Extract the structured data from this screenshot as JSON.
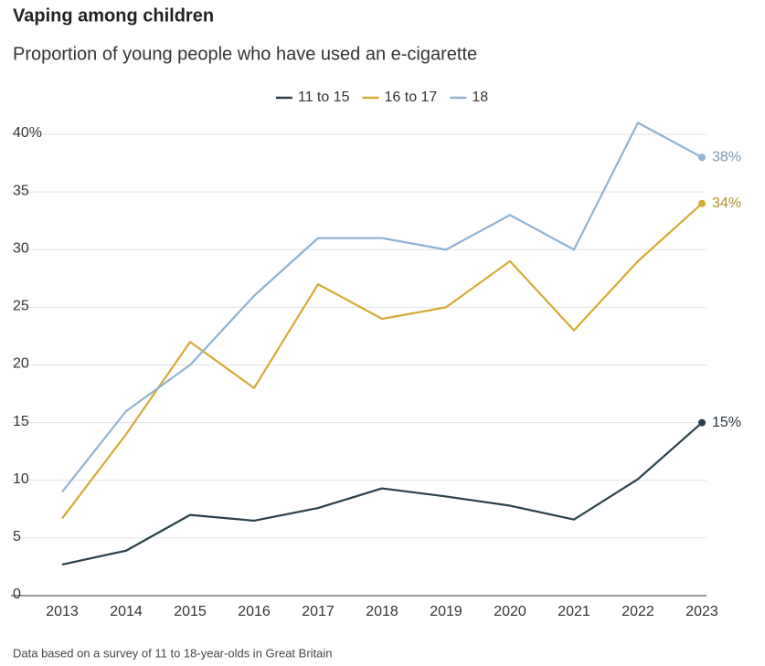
{
  "chart_data": {
    "type": "line",
    "title": "Vaping among children",
    "subtitle": "Proportion of young people who have used an e-cigarette",
    "note": "Data based on a survey of 11 to 18-year-olds in Great Britain",
    "x": [
      2013,
      2014,
      2015,
      2016,
      2017,
      2018,
      2019,
      2020,
      2021,
      2022,
      2023
    ],
    "xlim": [
      2013,
      2023
    ],
    "xticks": [
      2013,
      2014,
      2015,
      2016,
      2017,
      2018,
      2019,
      2020,
      2021,
      2022,
      2023
    ],
    "ylim": [
      0,
      42
    ],
    "yticks": [
      0,
      5,
      10,
      15,
      20,
      25,
      30,
      35,
      {
        "value": 40,
        "label": "40%"
      }
    ],
    "grid": true,
    "legend": "top",
    "series": [
      {
        "name": "11 to 15",
        "color": "#2a3f4a",
        "values": [
          2.7,
          3.9,
          7.0,
          6.5,
          7.6,
          9.3,
          8.6,
          7.8,
          6.6,
          10.1,
          15
        ],
        "value_labels": [
          null,
          null,
          null,
          null,
          null,
          null,
          null,
          null,
          null,
          null,
          "15%"
        ]
      },
      {
        "name": "16 to 17",
        "color": "#d4ab36",
        "values": [
          6.7,
          14,
          22,
          18,
          27,
          24,
          25,
          29,
          23,
          29,
          34
        ],
        "value_labels": [
          null,
          null,
          null,
          null,
          null,
          null,
          null,
          null,
          null,
          null,
          "34%"
        ]
      },
      {
        "name": "18",
        "color": "#8fb3d3",
        "values": [
          9,
          16,
          20,
          26,
          31,
          31,
          30,
          33,
          30,
          41,
          38
        ],
        "value_labels": [
          null,
          null,
          null,
          null,
          null,
          null,
          null,
          null,
          null,
          null,
          "38%"
        ]
      }
    ]
  }
}
